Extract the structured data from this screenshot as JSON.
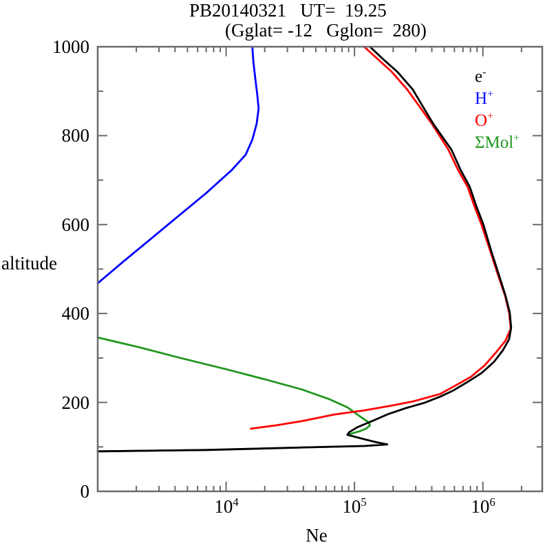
{
  "title": {
    "line1": "PB20140321   UT=  19.25",
    "line2": "(Gglat= -12   Gglon=  280)"
  },
  "axes": {
    "x": {
      "label": "Ne",
      "scale": "log",
      "min": 1000,
      "max": 2900000,
      "major_tick_labels": [
        {
          "base": "10",
          "sup": "4",
          "value": 10000
        },
        {
          "base": "10",
          "sup": "5",
          "value": 100000
        },
        {
          "base": "10",
          "sup": "6",
          "value": 1000000
        }
      ]
    },
    "y": {
      "label": "altitude",
      "min": 0,
      "max": 1000,
      "major_step": 200,
      "minor_step": 100,
      "tick_labels": [
        "0",
        "200",
        "400",
        "600",
        "800",
        "1000"
      ]
    }
  },
  "legend": {
    "items": [
      {
        "base": "e",
        "sup": "-",
        "color": "#000000"
      },
      {
        "base": "H",
        "sup": "+",
        "color": "#0000ff"
      },
      {
        "base": "O",
        "sup": "+",
        "color": "#ff0000"
      },
      {
        "base": "ΣMol",
        "sup": "+",
        "color": "#21961e"
      }
    ]
  },
  "colors": {
    "frame": "#6a6a6a",
    "electron": "#000000",
    "h_plus": "#0000ff",
    "o_plus": "#ff0000",
    "mol_plus": "#21961e"
  },
  "chart_data": {
    "type": "line",
    "title": "PB20140321  UT= 19.25 (Gglat= -12  Gglon= 280)",
    "xlabel": "Ne",
    "ylabel": "altitude",
    "x_scale": "log",
    "xlim": [
      1000,
      2900000
    ],
    "ylim": [
      0,
      1000
    ],
    "grid": false,
    "legend_position": "upper right inside",
    "series": [
      {
        "id": "mol-plus",
        "name": "ΣMol+",
        "color": "#21961e",
        "points_ne_alt": [
          [
            1000,
            346
          ],
          [
            2040,
            325
          ],
          [
            4280,
            301
          ],
          [
            10200,
            274
          ],
          [
            21300,
            250
          ],
          [
            39000,
            229
          ],
          [
            64000,
            207
          ],
          [
            88000,
            189
          ],
          [
            105000,
            173
          ],
          [
            119000,
            162
          ],
          [
            129000,
            155
          ],
          [
            132000,
            148
          ],
          [
            123000,
            141
          ],
          [
            112000,
            136
          ],
          [
            88000,
            127
          ],
          [
            97000,
            124
          ],
          [
            120000,
            117
          ],
          [
            150000,
            110
          ],
          [
            180000,
            105.5
          ],
          [
            120000,
            102
          ],
          [
            45000,
            99
          ],
          [
            7000,
            93
          ],
          [
            1000,
            90
          ]
        ]
      },
      {
        "id": "o-plus",
        "name": "O+",
        "color": "#ff0000",
        "points_ne_alt": [
          [
            15600,
            141
          ],
          [
            24000,
            148
          ],
          [
            39000,
            158
          ],
          [
            70000,
            173
          ],
          [
            119000,
            182
          ],
          [
            196000,
            193
          ],
          [
            284000,
            202
          ],
          [
            465000,
            219
          ],
          [
            630000,
            240
          ],
          [
            810000,
            258
          ],
          [
            1030000,
            283
          ],
          [
            1280000,
            314
          ],
          [
            1500000,
            339
          ],
          [
            1650000,
            366
          ],
          [
            1600000,
            402
          ],
          [
            1490000,
            440
          ],
          [
            1340000,
            479
          ],
          [
            1140000,
            541
          ],
          [
            975000,
            600
          ],
          [
            860000,
            641
          ],
          [
            760000,
            685
          ],
          [
            640000,
            723
          ],
          [
            540000,
            768
          ],
          [
            400000,
            827
          ],
          [
            320000,
            866
          ],
          [
            257000,
            904
          ],
          [
            196000,
            943
          ],
          [
            152000,
            972
          ],
          [
            119000,
            1000
          ]
        ]
      },
      {
        "id": "h-plus",
        "name": "H+",
        "color": "#0000ff",
        "points_ne_alt": [
          [
            1000,
            468
          ],
          [
            1600,
            518
          ],
          [
            2620,
            569
          ],
          [
            4280,
            620
          ],
          [
            7000,
            671
          ],
          [
            11000,
            722
          ],
          [
            14200,
            757
          ],
          [
            16000,
            791
          ],
          [
            17300,
            827
          ],
          [
            17900,
            861
          ],
          [
            17500,
            892
          ],
          [
            16900,
            927
          ],
          [
            16300,
            966
          ],
          [
            16000,
            1000
          ]
        ]
      },
      {
        "id": "electron",
        "name": "e-",
        "color": "#000000",
        "points_ne_alt": [
          [
            1000,
            90
          ],
          [
            7000,
            93
          ],
          [
            45000,
            99
          ],
          [
            120000,
            102
          ],
          [
            180000,
            105.5
          ],
          [
            150000,
            110
          ],
          [
            120000,
            117
          ],
          [
            97000,
            124
          ],
          [
            88000,
            127
          ],
          [
            91000,
            133
          ],
          [
            105000,
            144
          ],
          [
            140000,
            159
          ],
          [
            180000,
            173
          ],
          [
            250000,
            187
          ],
          [
            350000,
            199
          ],
          [
            465000,
            213
          ],
          [
            590000,
            227
          ],
          [
            760000,
            246
          ],
          [
            975000,
            266
          ],
          [
            1220000,
            291
          ],
          [
            1430000,
            317
          ],
          [
            1600000,
            342
          ],
          [
            1660000,
            368
          ],
          [
            1620000,
            402
          ],
          [
            1500000,
            440
          ],
          [
            1360000,
            479
          ],
          [
            1160000,
            541
          ],
          [
            1010000,
            600
          ],
          [
            890000,
            641
          ],
          [
            790000,
            685
          ],
          [
            670000,
            723
          ],
          [
            570000,
            768
          ],
          [
            410000,
            827
          ],
          [
            340000,
            866
          ],
          [
            284000,
            904
          ],
          [
            217000,
            943
          ],
          [
            167000,
            972
          ],
          [
            132000,
            1000
          ]
        ]
      }
    ]
  }
}
